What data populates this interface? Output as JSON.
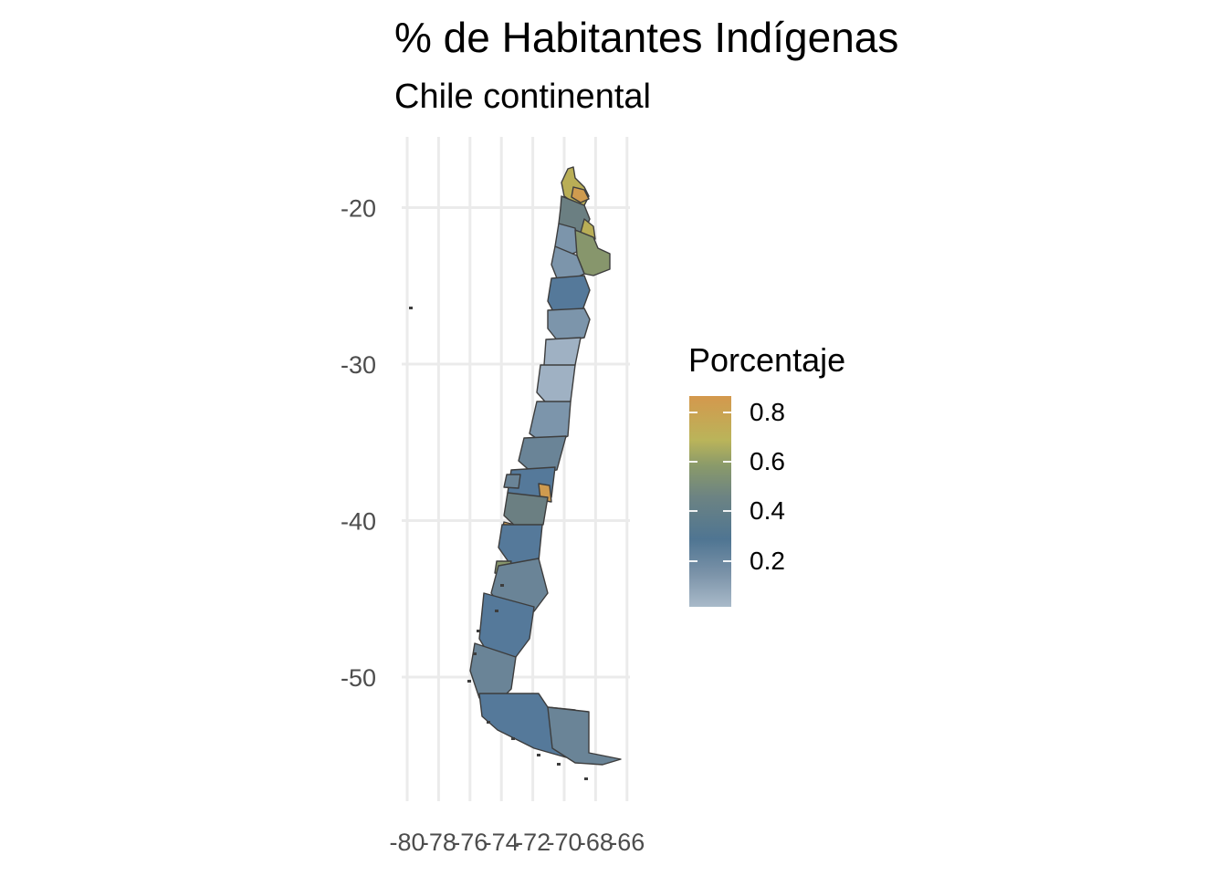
{
  "chart_data": {
    "type": "map",
    "title": "% de Habitantes Indígenas",
    "subtitle": "Chile continental",
    "xlabel": "",
    "ylabel": "",
    "x_ticks": [
      "-80",
      "-78",
      "-76",
      "-74",
      "-72",
      "-70",
      "-68",
      "-66"
    ],
    "y_ticks": [
      "-20",
      "-30",
      "-40",
      "-50"
    ],
    "xlim": [
      -80,
      -66
    ],
    "ylim": [
      -57,
      -17
    ],
    "grid": true,
    "legend": {
      "title": "Porcentaje",
      "position": "right",
      "labels": [
        "0.8",
        "0.6",
        "0.4",
        "0.2"
      ],
      "colors": [
        "#d4984d",
        "#bab45a",
        "#8a9a6a",
        "#6c8383",
        "#4f7592",
        "#7a92a8",
        "#a9bac9"
      ]
    }
  },
  "colors": {
    "grid": "#ebebeb",
    "border": "#3d3d3d",
    "low": "#a9bac9",
    "mid": "#4f7592",
    "high": "#d4984d"
  }
}
